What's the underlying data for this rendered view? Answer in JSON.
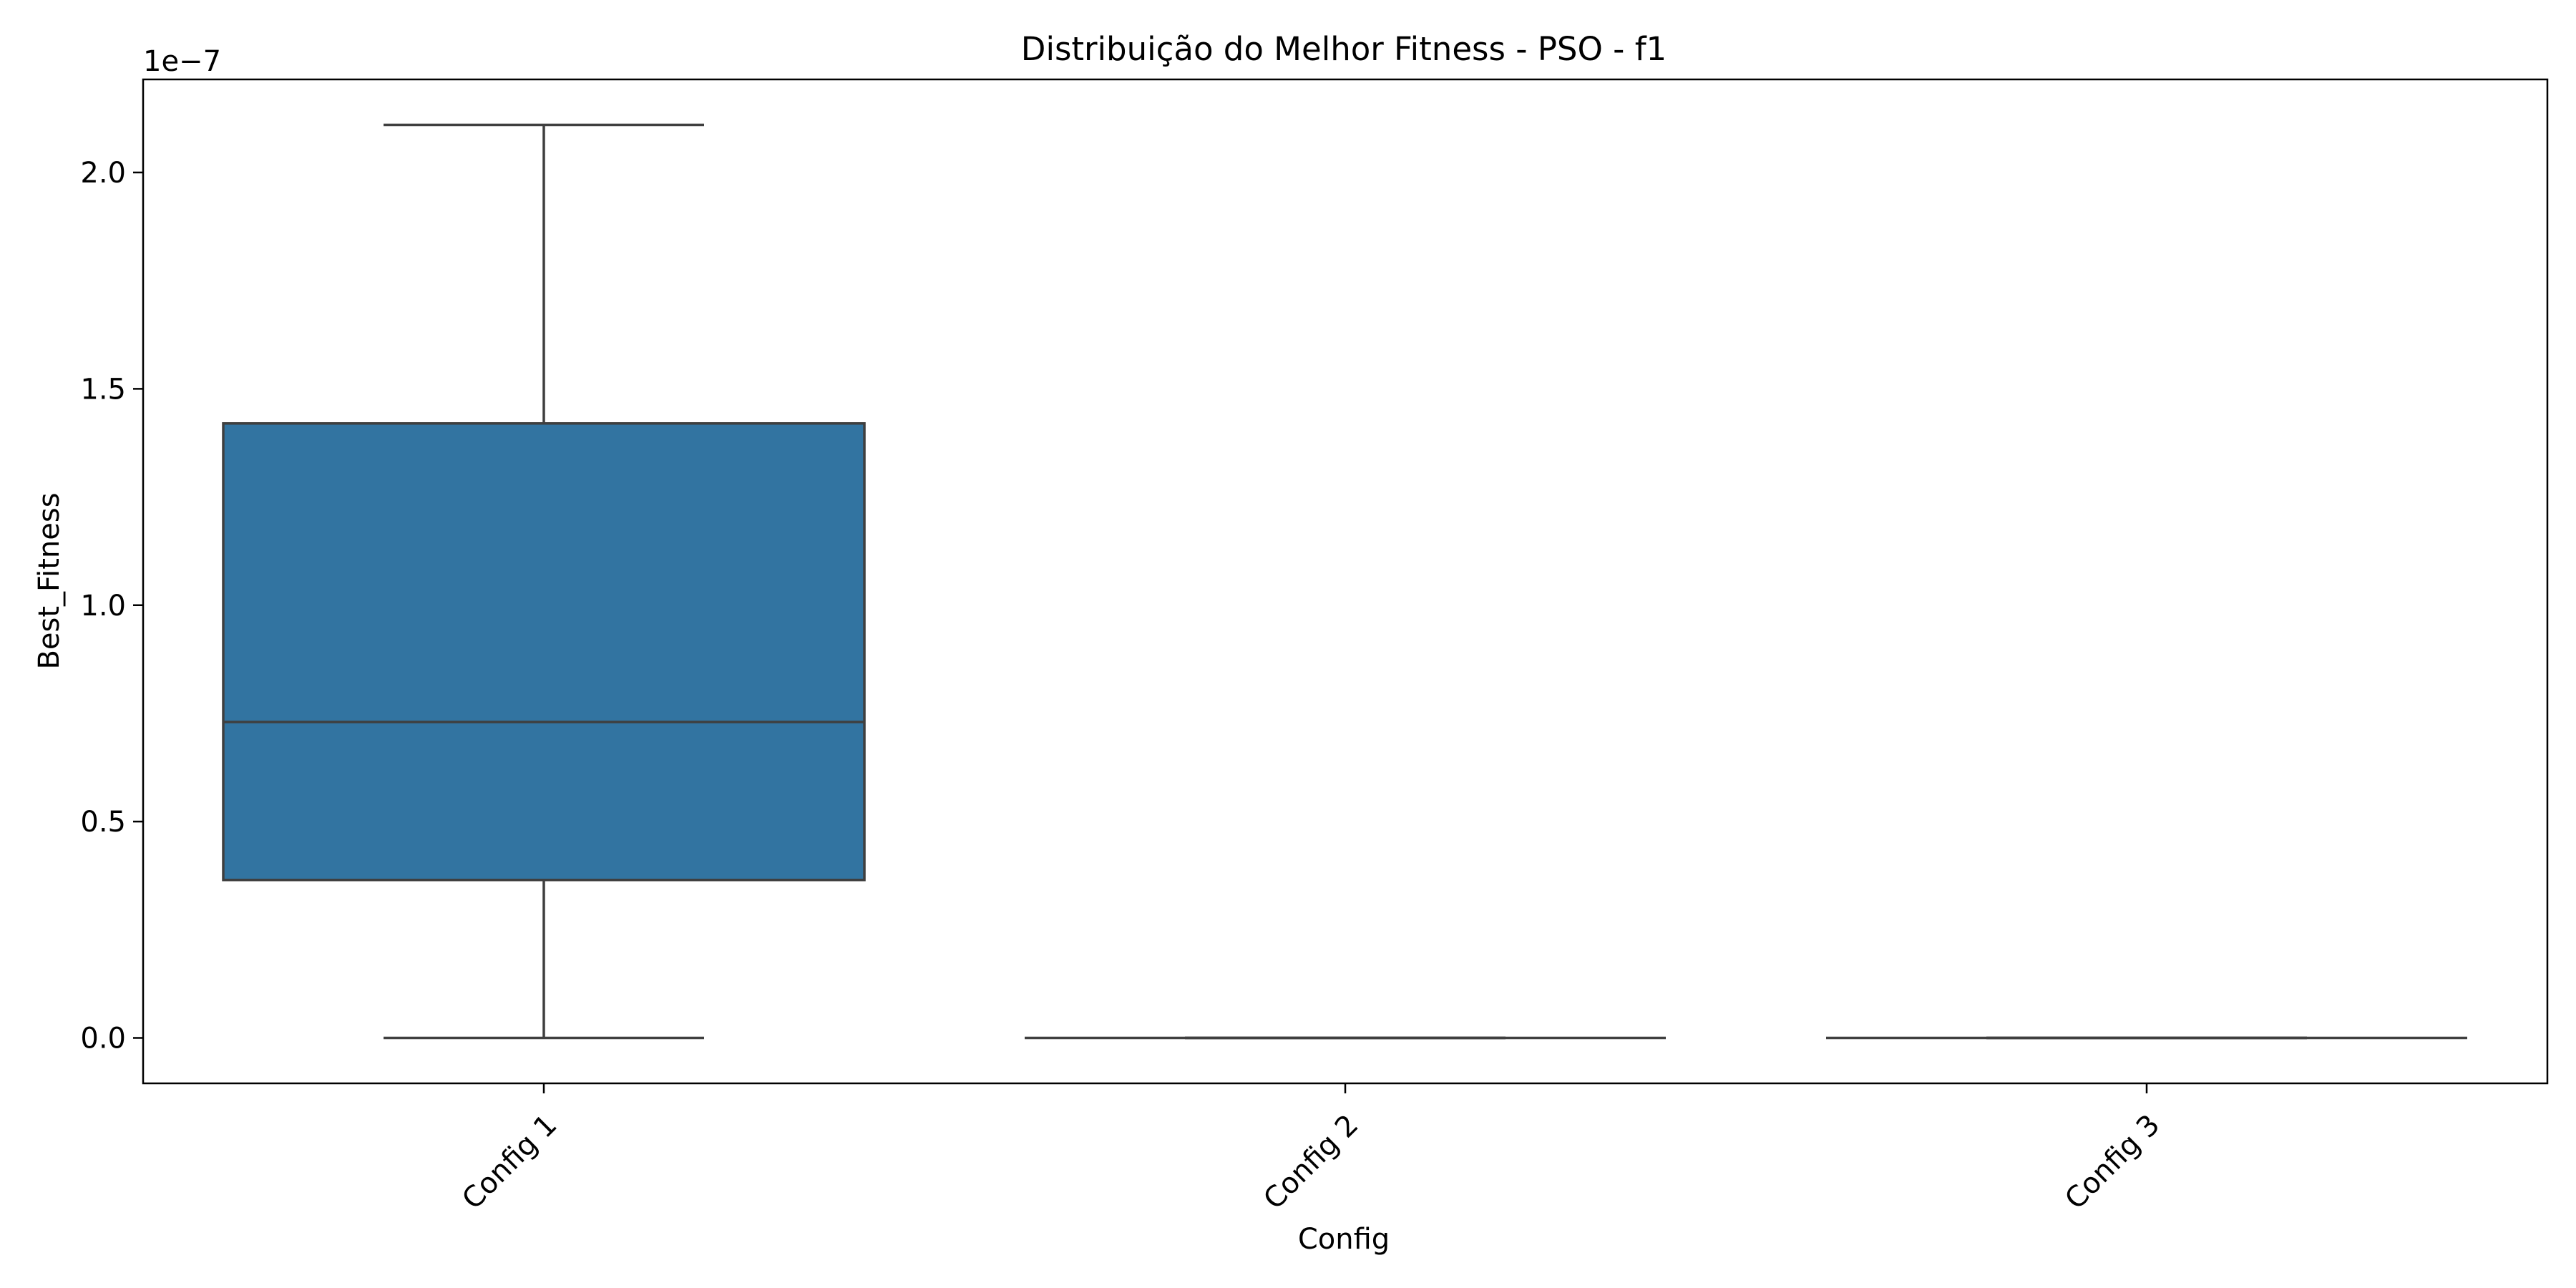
{
  "chart_data": {
    "type": "box",
    "title": "Distribuição do Melhor Fitness - PSO - f1",
    "xlabel": "Config",
    "ylabel": "Best_Fitness",
    "y_scale_label": "1e−7",
    "y_scale_factor": 1e-07,
    "ylim": [
      -0.105,
      2.215
    ],
    "yticks": [
      0.0,
      0.5,
      1.0,
      1.5,
      2.0
    ],
    "ytick_labels": [
      "0.0",
      "0.5",
      "1.0",
      "1.5",
      "2.0"
    ],
    "categories": [
      "Config 1",
      "Config 2",
      "Config 3"
    ],
    "x_tick_rotation_deg": 45,
    "grid": false,
    "legend": "none",
    "box_color": "#3274a1",
    "line_color": "#3f3f3f",
    "boxes": [
      {
        "category": "Config 1",
        "whisker_low": 0.0,
        "q1": 0.365,
        "median": 0.73,
        "q3": 1.42,
        "whisker_high": 2.11
      },
      {
        "category": "Config 2",
        "whisker_low": 0.0,
        "q1": 0.0,
        "median": 0.0,
        "q3": 0.0,
        "whisker_high": 0.0
      },
      {
        "category": "Config 3",
        "whisker_low": 0.0,
        "q1": 0.0,
        "median": 0.0,
        "q3": 0.0,
        "whisker_high": 0.0
      }
    ]
  }
}
